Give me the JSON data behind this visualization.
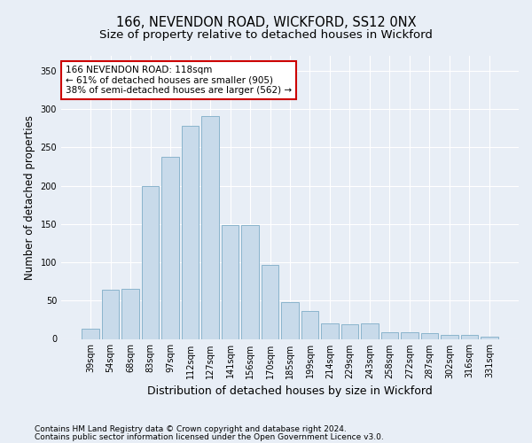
{
  "title": "166, NEVENDON ROAD, WICKFORD, SS12 0NX",
  "subtitle": "Size of property relative to detached houses in Wickford",
  "xlabel": "Distribution of detached houses by size in Wickford",
  "ylabel": "Number of detached properties",
  "categories": [
    "39sqm",
    "54sqm",
    "68sqm",
    "83sqm",
    "97sqm",
    "112sqm",
    "127sqm",
    "141sqm",
    "156sqm",
    "170sqm",
    "185sqm",
    "199sqm",
    "214sqm",
    "229sqm",
    "243sqm",
    "258sqm",
    "272sqm",
    "287sqm",
    "302sqm",
    "316sqm",
    "331sqm"
  ],
  "values": [
    13,
    64,
    65,
    200,
    238,
    278,
    291,
    149,
    149,
    97,
    48,
    36,
    20,
    19,
    20,
    9,
    9,
    8,
    5,
    5,
    3
  ],
  "bar_color": "#c8daea",
  "bar_edge_color": "#8ab4cc",
  "annotation_text": "166 NEVENDON ROAD: 118sqm\n← 61% of detached houses are smaller (905)\n38% of semi-detached houses are larger (562) →",
  "annotation_box_facecolor": "#ffffff",
  "annotation_box_edgecolor": "#cc0000",
  "ylim": [
    0,
    370
  ],
  "yticks": [
    0,
    50,
    100,
    150,
    200,
    250,
    300,
    350
  ],
  "background_color": "#e8eef6",
  "grid_color": "#ffffff",
  "footer_line1": "Contains HM Land Registry data © Crown copyright and database right 2024.",
  "footer_line2": "Contains public sector information licensed under the Open Government Licence v3.0.",
  "title_fontsize": 10.5,
  "subtitle_fontsize": 9.5,
  "xlabel_fontsize": 9,
  "ylabel_fontsize": 8.5,
  "tick_fontsize": 7,
  "annotation_fontsize": 7.5,
  "footer_fontsize": 6.5
}
